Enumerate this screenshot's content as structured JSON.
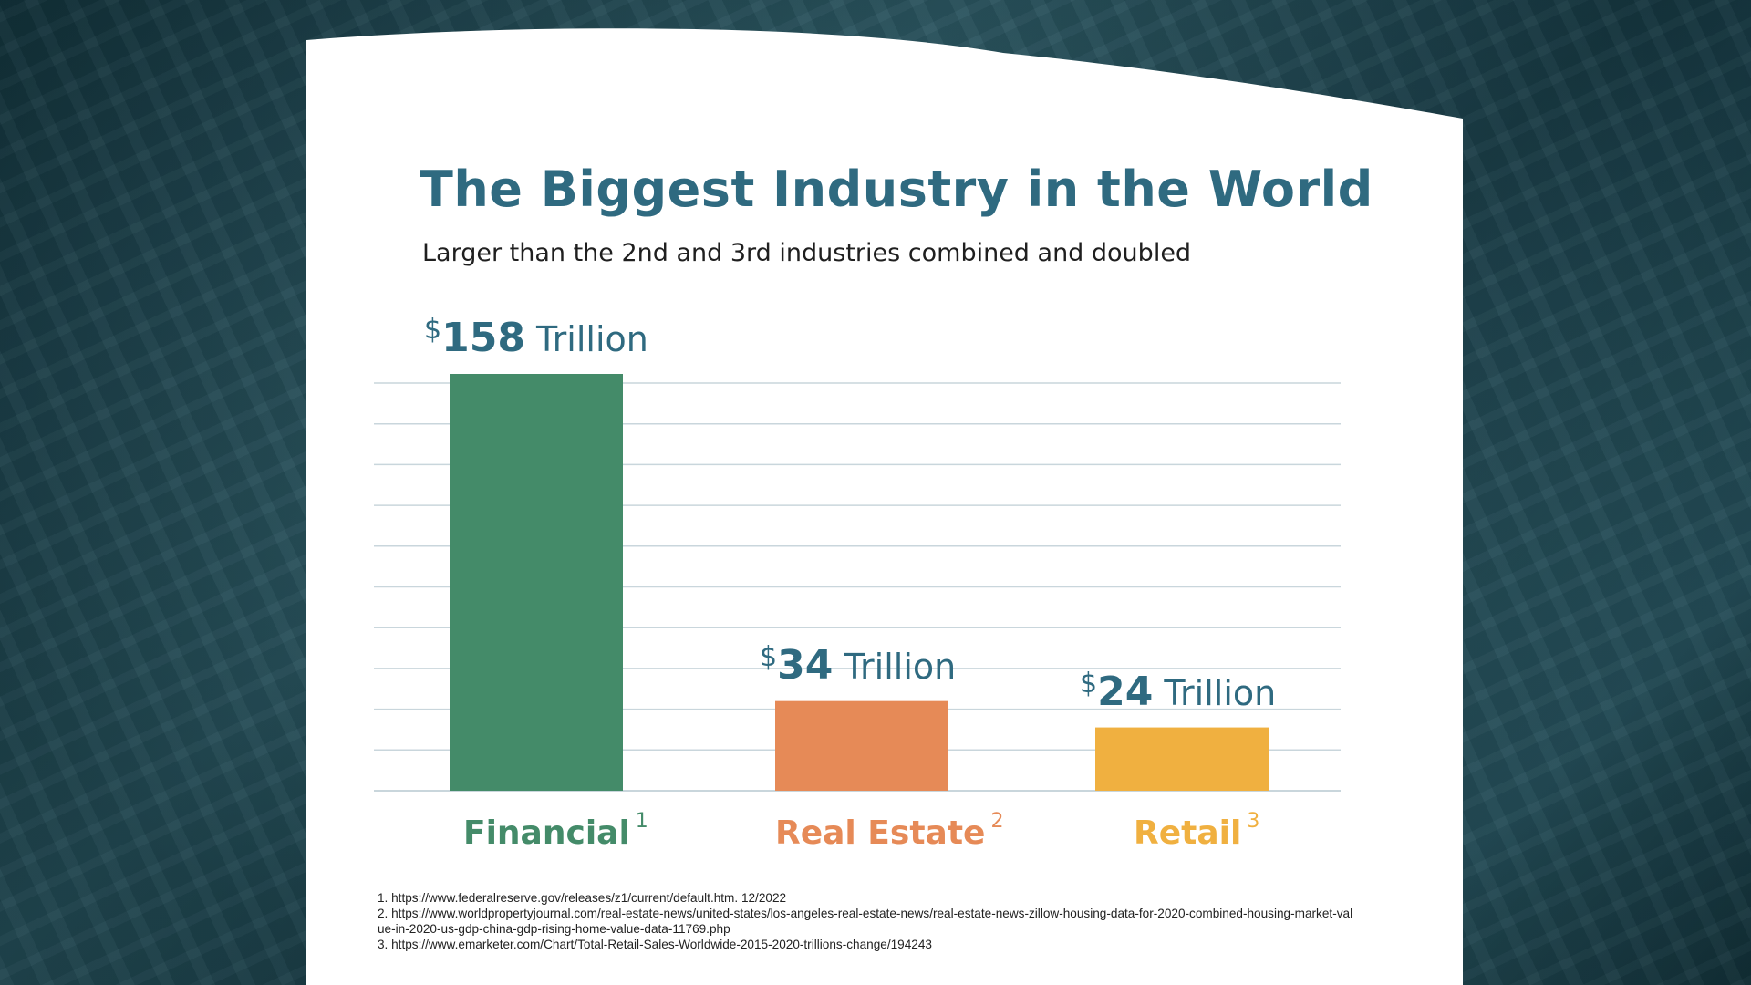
{
  "header": {
    "title": "The Biggest Industry in the World",
    "subtitle": "Larger than the 2nd and 3rd industries combined and doubled"
  },
  "chart_data": {
    "type": "bar",
    "categories": [
      "Financial",
      "Real Estate",
      "Retail"
    ],
    "values": [
      158,
      34,
      24
    ],
    "footnote_refs": [
      "1",
      "2",
      "3"
    ],
    "value_prefix": "$",
    "value_unit": "Trillion",
    "colors": [
      "#448b69",
      "#e68a57",
      "#f0b040"
    ],
    "title": "The Biggest Industry in the World",
    "xlabel": "",
    "ylabel": "",
    "ylim": [
      0,
      160
    ],
    "grid": true,
    "legend": "none"
  },
  "footnotes": [
    "1. https://www.federalreserve.gov/releases/z1/current/default.htm. 12/2022",
    "2. https://www.worldpropertyjournal.com/real-estate-news/united-states/los-angeles-real-estate-news/real-estate-news-zillow-housing-data-for-2020-combined-housing-market-value-in-2020-us-gdp-china-gdp-rising-home-value-data-11769.php",
    "3. https://www.emarketer.com/Chart/Total-Retail-Sales-Worldwide-2015-2020-trillions-change/194243"
  ],
  "theme": {
    "title_color": "#2f6a80",
    "grid_color": "#c9d6dc",
    "card_color": "#ffffff"
  }
}
